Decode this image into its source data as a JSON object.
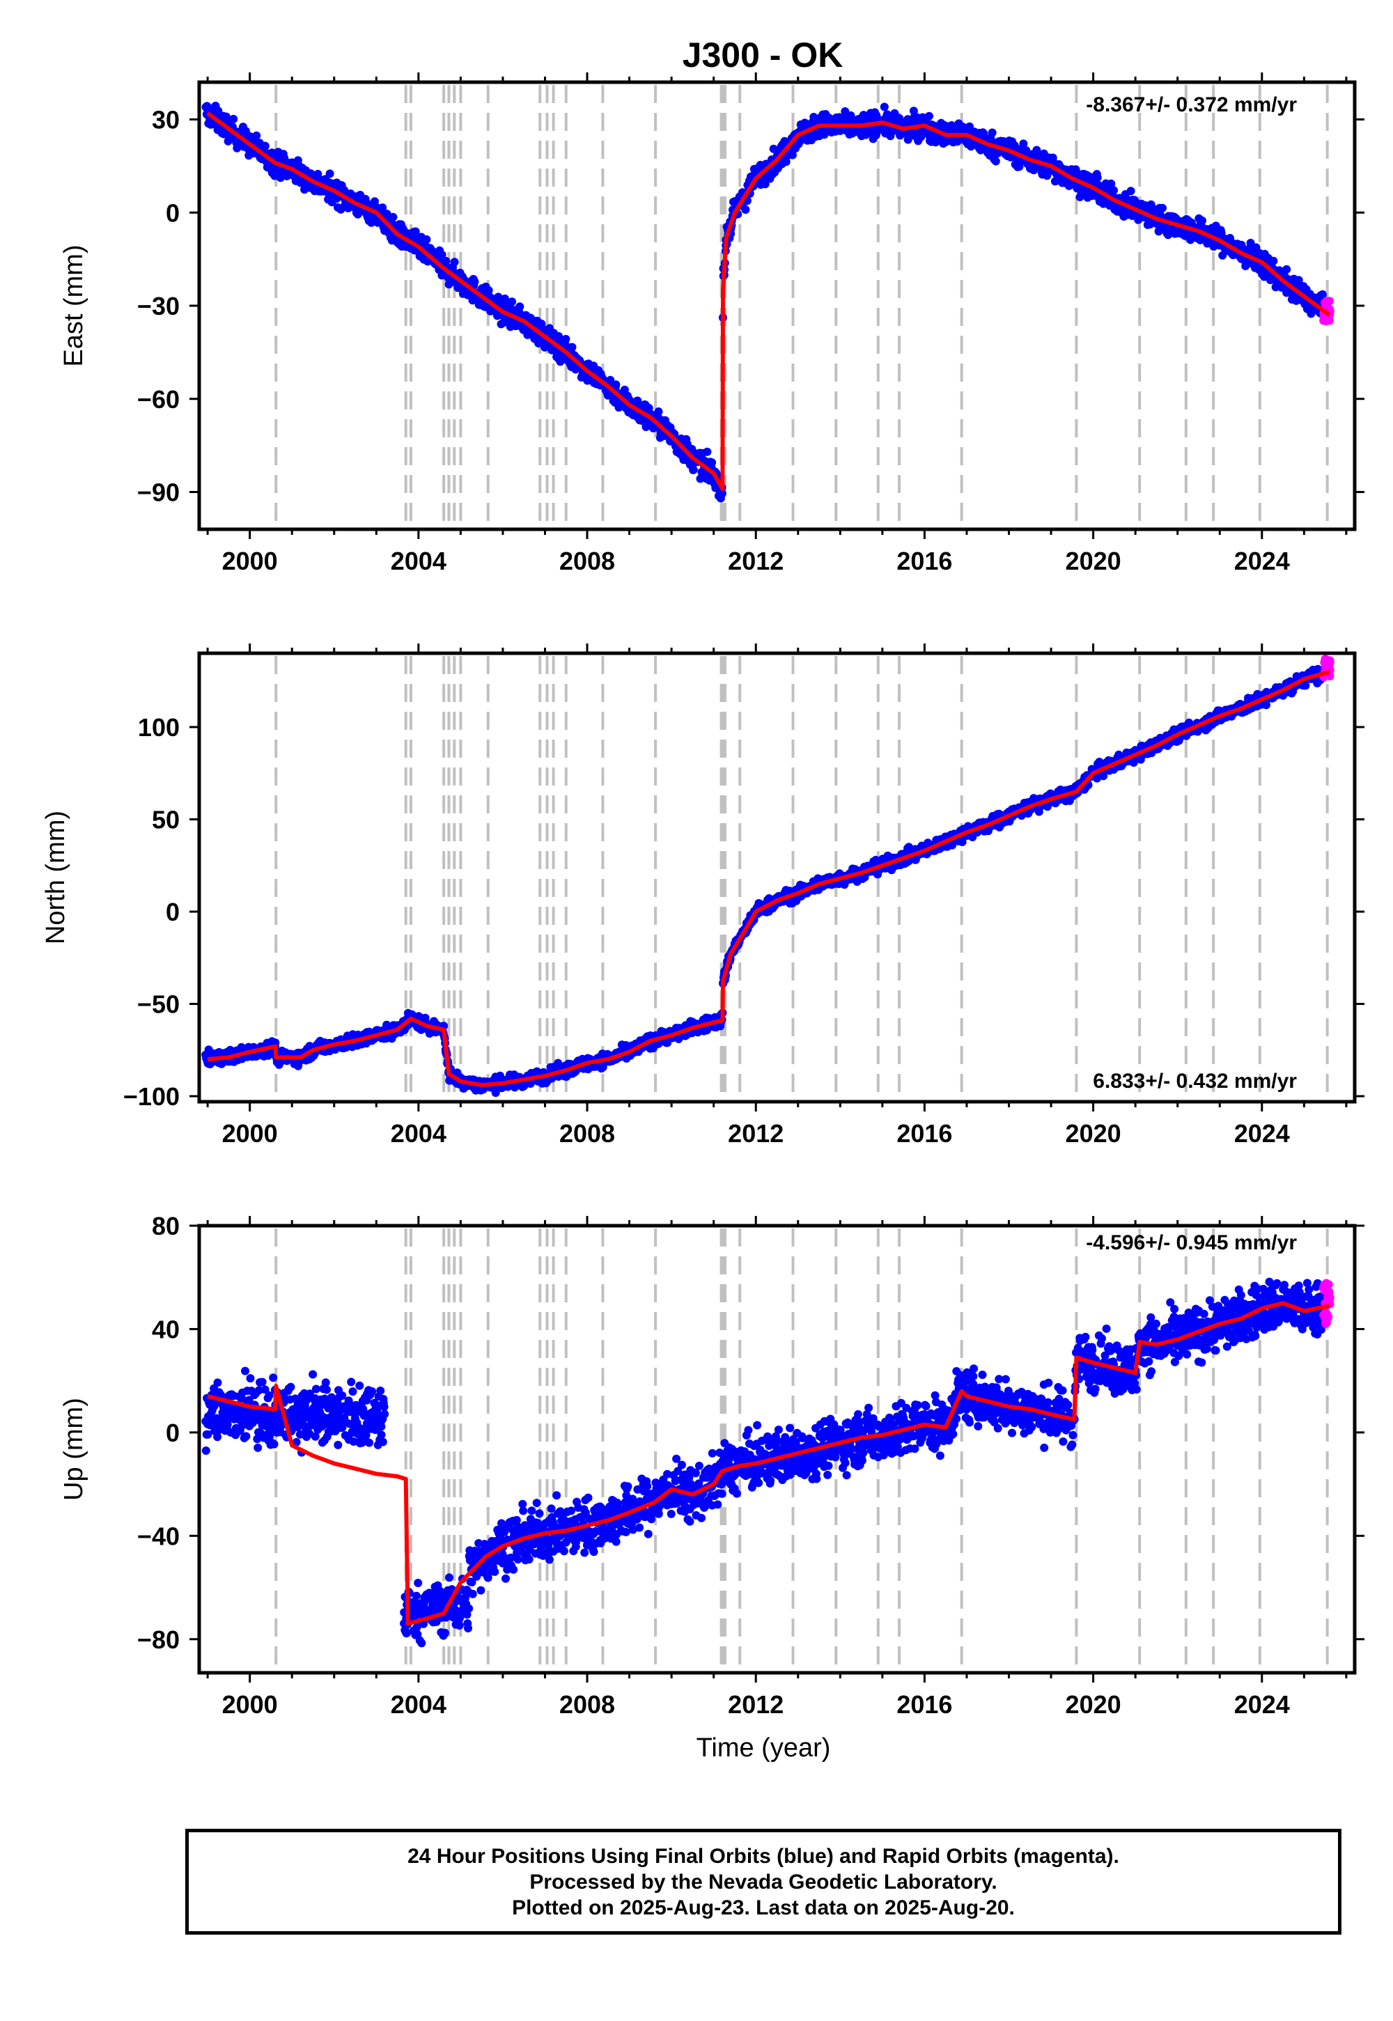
{
  "title": "J300 - OK",
  "chart_data": [
    {
      "type": "scatter",
      "ylabel": "East (mm)",
      "xlabel": "",
      "xlim": [
        1998.8,
        2026.2
      ],
      "ylim": [
        -102,
        42
      ],
      "yticks": [
        -90,
        -60,
        -30,
        0,
        30
      ],
      "xticks": [
        2000,
        2004,
        2008,
        2012,
        2016,
        2020,
        2024
      ],
      "rate_label": "-8.367+/- 0.372 mm/yr",
      "rate_position": "top-right",
      "colors": {
        "final": "#0000ff",
        "rapid": "#ff00ff",
        "model": "#ff0000",
        "events": "#c0c0c0"
      },
      "model_series": {
        "name": "",
        "x": [
          1999.0,
          1999.5,
          2000.0,
          2000.6,
          2001.0,
          2001.5,
          2002.0,
          2002.5,
          2003.0,
          2003.5,
          2004.0,
          2004.6,
          2005.0,
          2005.6,
          2006.0,
          2006.5,
          2007.0,
          2007.5,
          2008.0,
          2008.5,
          2009.0,
          2009.5,
          2010.0,
          2010.5,
          2011.0,
          2011.21,
          2011.22,
          2011.3,
          2011.5,
          2012.0,
          2012.5,
          2013.0,
          2013.5,
          2014.0,
          2014.5,
          2015.0,
          2015.5,
          2016.0,
          2016.5,
          2017.0,
          2017.5,
          2018.0,
          2018.5,
          2019.0,
          2019.5,
          2020.0,
          2020.5,
          2021.0,
          2021.5,
          2022.0,
          2022.5,
          2023.0,
          2023.5,
          2024.0,
          2024.5,
          2025.0,
          2025.6
        ],
        "values": [
          32,
          27,
          22,
          16,
          14,
          10,
          7,
          3,
          0,
          -7,
          -11,
          -18,
          -22,
          -28,
          -32,
          -35,
          -40,
          -45,
          -51,
          -56,
          -62,
          -66,
          -72,
          -79,
          -84,
          -89,
          -25,
          -8,
          0,
          11,
          17,
          25,
          28,
          28,
          28,
          29,
          27,
          28,
          25,
          25,
          22,
          20,
          17,
          15,
          11,
          8,
          4,
          1,
          -2,
          -4,
          -6,
          -9,
          -13,
          -16,
          -22,
          -27,
          -33
        ]
      },
      "rapid": {
        "x": [
          2025.45,
          2025.62
        ],
        "ylow": -35,
        "yhigh": -28
      },
      "events": [
        2000.62,
        2003.7,
        2003.82,
        2004.6,
        2004.72,
        2004.85,
        2005.0,
        2005.65,
        2006.88,
        2007.05,
        2007.2,
        2007.5,
        2008.37,
        2009.62,
        2011.18,
        2011.22,
        2011.27,
        2011.62,
        2012.88,
        2013.9,
        2014.9,
        2015.4,
        2016.88,
        2019.6,
        2021.1,
        2022.2,
        2022.85,
        2023.95,
        2025.55
      ]
    },
    {
      "type": "scatter",
      "ylabel": "North (mm)",
      "xlabel": "",
      "xlim": [
        1998.8,
        2026.2
      ],
      "ylim": [
        -103,
        140
      ],
      "yticks": [
        -100,
        -50,
        0,
        50,
        100
      ],
      "xticks": [
        2000,
        2004,
        2008,
        2012,
        2016,
        2020,
        2024
      ],
      "rate_label": "6.833+/- 0.432 mm/yr",
      "rate_position": "bottom-right",
      "colors": {
        "final": "#0000ff",
        "rapid": "#ff00ff",
        "model": "#ff0000",
        "events": "#c0c0c0"
      },
      "model_series": {
        "name": "",
        "x": [
          1999.0,
          1999.5,
          2000.0,
          2000.61,
          2000.62,
          2001.2,
          2001.5,
          2002.0,
          2002.5,
          2003.0,
          2003.5,
          2003.82,
          2004.2,
          2004.6,
          2004.72,
          2005.0,
          2005.5,
          2006.0,
          2006.5,
          2007.0,
          2007.5,
          2008.0,
          2008.5,
          2009.0,
          2009.5,
          2010.0,
          2010.5,
          2011.0,
          2011.21,
          2011.22,
          2011.4,
          2011.8,
          2012.0,
          2012.5,
          2013.0,
          2013.5,
          2014.0,
          2014.5,
          2015.0,
          2015.5,
          2016.0,
          2016.5,
          2017.0,
          2017.5,
          2018.0,
          2018.5,
          2019.0,
          2019.6,
          2020.0,
          2020.5,
          2021.0,
          2021.5,
          2022.0,
          2022.5,
          2023.0,
          2023.5,
          2024.0,
          2024.5,
          2025.0,
          2025.6
        ],
        "values": [
          -80,
          -79,
          -76,
          -73,
          -79,
          -79,
          -75,
          -72,
          -70,
          -67,
          -64,
          -58,
          -62,
          -64,
          -88,
          -92,
          -94,
          -93,
          -91,
          -89,
          -86,
          -82,
          -80,
          -76,
          -70,
          -67,
          -63,
          -60,
          -59,
          -38,
          -23,
          -8,
          0,
          6,
          10,
          15,
          18,
          21,
          25,
          29,
          33,
          38,
          43,
          47,
          52,
          57,
          61,
          65,
          75,
          80,
          85,
          90,
          96,
          101,
          106,
          110,
          115,
          120,
          126,
          130
        ]
      },
      "rapid": {
        "x": [
          2025.45,
          2025.62
        ],
        "ylow": 127,
        "yhigh": 137
      },
      "events": [
        2000.62,
        2003.7,
        2003.82,
        2004.6,
        2004.72,
        2004.85,
        2005.0,
        2005.65,
        2006.88,
        2007.05,
        2007.2,
        2007.5,
        2008.37,
        2009.62,
        2011.18,
        2011.22,
        2011.27,
        2011.62,
        2012.88,
        2013.9,
        2014.9,
        2015.4,
        2016.88,
        2019.6,
        2021.1,
        2022.2,
        2022.85,
        2023.95,
        2025.55
      ]
    },
    {
      "type": "scatter",
      "ylabel": "Up (mm)",
      "xlabel": "Time (year)",
      "xlim": [
        1998.8,
        2026.2
      ],
      "ylim": [
        -93,
        80
      ],
      "yticks": [
        -80,
        -40,
        0,
        40,
        80
      ],
      "xticks": [
        2000,
        2004,
        2008,
        2012,
        2016,
        2020,
        2024
      ],
      "rate_label": "-4.596+/- 0.945 mm/yr",
      "rate_position": "top-right",
      "colors": {
        "final": "#0000ff",
        "rapid": "#ff00ff",
        "model": "#ff0000",
        "events": "#c0c0c0"
      },
      "model_series": {
        "name": "",
        "x": [
          1999.0,
          1999.5,
          2000.0,
          2000.6,
          2000.62,
          2001.0,
          2001.5,
          2002.0,
          2002.5,
          2003.0,
          2003.5,
          2003.7,
          2003.75,
          2004.2,
          2004.6,
          2005.0,
          2005.6,
          2006.0,
          2006.5,
          2007.0,
          2007.5,
          2008.0,
          2008.5,
          2009.0,
          2009.6,
          2010.0,
          2010.5,
          2011.0,
          2011.2,
          2011.6,
          2012.0,
          2012.5,
          2013.0,
          2013.5,
          2014.0,
          2014.5,
          2015.0,
          2015.5,
          2016.0,
          2016.5,
          2016.88,
          2017.0,
          2017.5,
          2018.0,
          2018.5,
          2019.0,
          2019.55,
          2019.6,
          2020.0,
          2020.5,
          2021.0,
          2021.1,
          2021.5,
          2022.0,
          2022.5,
          2023.0,
          2023.5,
          2024.0,
          2024.5,
          2025.0,
          2025.6
        ],
        "values": [
          14,
          12,
          10,
          9,
          18,
          -5,
          -9,
          -12,
          -14,
          -16,
          -17,
          -18,
          -74,
          -72,
          -70,
          -58,
          -48,
          -44,
          -41,
          -39,
          -38,
          -36,
          -34,
          -31,
          -27,
          -22,
          -24,
          -20,
          -15,
          -13,
          -12,
          -10,
          -8,
          -6,
          -4,
          -2,
          -1,
          1,
          3,
          2,
          16,
          14,
          12,
          10,
          9,
          7,
          5,
          29,
          27,
          25,
          23,
          35,
          34,
          36,
          39,
          42,
          44,
          48,
          50,
          47,
          49
        ]
      },
      "rapid": {
        "x": [
          2025.45,
          2025.62
        ],
        "ylow": 42,
        "yhigh": 58
      },
      "events": [
        2000.62,
        2003.7,
        2003.82,
        2004.6,
        2004.72,
        2004.85,
        2005.0,
        2005.65,
        2006.88,
        2007.05,
        2007.2,
        2007.5,
        2008.37,
        2009.62,
        2011.18,
        2011.22,
        2011.27,
        2011.62,
        2012.88,
        2013.9,
        2014.9,
        2015.4,
        2016.88,
        2019.6,
        2021.1,
        2022.2,
        2022.85,
        2023.95,
        2025.55
      ]
    }
  ],
  "footer": {
    "line1": "24 Hour Positions Using Final Orbits (blue) and Rapid Orbits (magenta).",
    "line2": "Processed by the Nevada Geodetic Laboratory.",
    "line3": "Plotted on 2025-Aug-23. Last data on 2025-Aug-20."
  }
}
